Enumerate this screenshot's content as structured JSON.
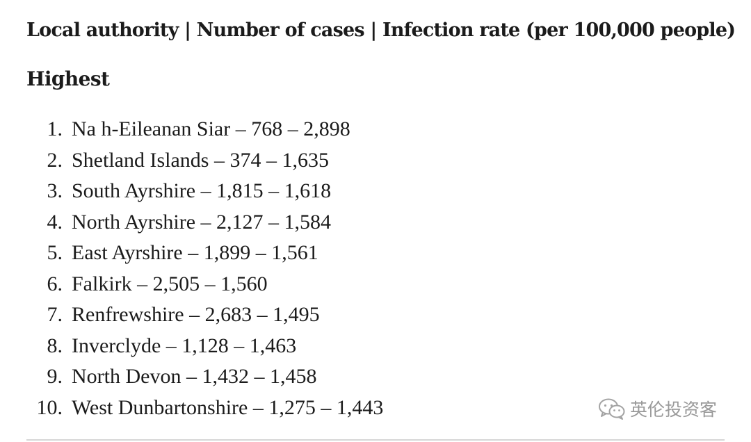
{
  "header": {
    "title": "Local authority | Number of cases | Infection rate (per 100,000 people)"
  },
  "section": {
    "heading": "Highest"
  },
  "items": [
    {
      "rank": "1.",
      "text": "Na h-Eileanan Siar – 768 – 2,898"
    },
    {
      "rank": "2.",
      "text": "Shetland Islands – 374 – 1,635"
    },
    {
      "rank": "3.",
      "text": "South Ayrshire – 1,815 – 1,618"
    },
    {
      "rank": "4.",
      "text": "North Ayrshire – 2,127 – 1,584"
    },
    {
      "rank": "5.",
      "text": "East Ayrshire – 1,899 – 1,561"
    },
    {
      "rank": "6.",
      "text": "Falkirk – 2,505 – 1,560"
    },
    {
      "rank": "7.",
      "text": "Renfrewshire – 2,683 – 1,495"
    },
    {
      "rank": "8.",
      "text": "Inverclyde – 1,128 – 1,463"
    },
    {
      "rank": "9.",
      "text": "North Devon – 1,432 – 1,458"
    },
    {
      "rank": "10.",
      "text": "West Dunbartonshire – 1,275 – 1,443"
    }
  ],
  "watermark": {
    "icon": "wechat-icon",
    "text": "英伦投资客",
    "color": "#9a9a9a"
  }
}
